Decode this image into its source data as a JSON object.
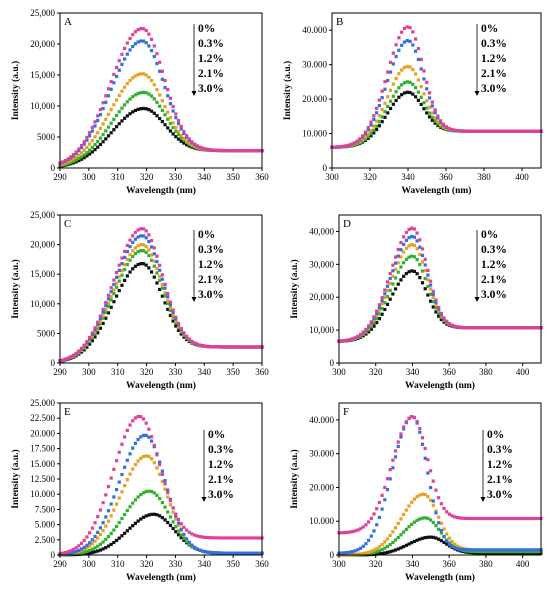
{
  "figure": {
    "legend_entries": [
      "0%",
      "0.3%",
      "1.2%",
      "2.1%",
      "3.0%"
    ]
  },
  "colors": {
    "0%": "#e0409a",
    "0.3%": "#3070e0",
    "1.2%": "#e8a020",
    "2.1%": "#30b030",
    "3.0%": "#111111"
  },
  "chart_data": [
    {
      "panel": "A",
      "type": "scatter",
      "xlabel": "Wavelength (nm)",
      "ylabel": "Intensity (a.u.)",
      "xlim": [
        290,
        360
      ],
      "ylim": [
        0,
        25000
      ],
      "xticks": [
        "290",
        "300",
        "310",
        "320",
        "330",
        "340",
        "350",
        "360"
      ],
      "yticks": [
        "0",
        "5000",
        "10,000",
        "15,000",
        "20,000",
        "25,000"
      ],
      "legend": [
        "0%",
        "0.3%",
        "1.2%",
        "2.1%",
        "3.0%"
      ],
      "series": [
        {
          "name": "0%",
          "color": "#e0409a",
          "model": {
            "peak_x": 318.5,
            "peak_y": 22500,
            "base_left": 0,
            "base_right": 2800,
            "sigma_left": 11,
            "sigma_right": 7.5
          }
        },
        {
          "name": "0.3%",
          "color": "#3070e0",
          "model": {
            "peak_x": 318.5,
            "peak_y": 20500,
            "base_left": 0,
            "base_right": 2800,
            "sigma_left": 11,
            "sigma_right": 7.5
          }
        },
        {
          "name": "1.2%",
          "color": "#e8a020",
          "model": {
            "peak_x": 318.5,
            "peak_y": 15200,
            "base_left": 0,
            "base_right": 2800,
            "sigma_left": 11,
            "sigma_right": 7.5
          }
        },
        {
          "name": "2.1%",
          "color": "#30b030",
          "model": {
            "peak_x": 319,
            "peak_y": 12200,
            "base_left": 0,
            "base_right": 2800,
            "sigma_left": 11,
            "sigma_right": 7.5
          }
        },
        {
          "name": "3.0%",
          "color": "#111111",
          "model": {
            "peak_x": 319,
            "peak_y": 9600,
            "base_left": 0,
            "base_right": 2800,
            "sigma_left": 11,
            "sigma_right": 7.5
          }
        }
      ]
    },
    {
      "panel": "B",
      "type": "scatter",
      "xlabel": "Wavelength (nm)",
      "ylabel": "Intensity (a.u.)",
      "xlim": [
        300,
        410
      ],
      "ylim": [
        0,
        45000
      ],
      "xticks": [
        "300",
        "320",
        "340",
        "360",
        "380",
        "400"
      ],
      "yticks": [
        "0",
        "10.000",
        "20.000",
        "30.000",
        "40.000"
      ],
      "legend": [
        "0%",
        "0.3%",
        "1.2%",
        "2.1%",
        "3.0%"
      ],
      "series": [
        {
          "name": "0%",
          "color": "#e0409a",
          "model": {
            "peak_x": 340,
            "peak_y": 41000,
            "base_left": 6000,
            "base_right": 10700,
            "sigma_left": 11,
            "sigma_right": 8
          }
        },
        {
          "name": "0.3%",
          "color": "#3070e0",
          "model": {
            "peak_x": 340,
            "peak_y": 37000,
            "base_left": 6000,
            "base_right": 10700,
            "sigma_left": 11,
            "sigma_right": 8
          }
        },
        {
          "name": "1.2%",
          "color": "#e8a020",
          "model": {
            "peak_x": 340,
            "peak_y": 29500,
            "base_left": 6000,
            "base_right": 10700,
            "sigma_left": 11,
            "sigma_right": 8
          }
        },
        {
          "name": "2.1%",
          "color": "#30b030",
          "model": {
            "peak_x": 340,
            "peak_y": 25000,
            "base_left": 6000,
            "base_right": 10700,
            "sigma_left": 11,
            "sigma_right": 8
          }
        },
        {
          "name": "3.0%",
          "color": "#111111",
          "model": {
            "peak_x": 340,
            "peak_y": 22000,
            "base_left": 6000,
            "base_right": 10700,
            "sigma_left": 11,
            "sigma_right": 8
          }
        }
      ]
    },
    {
      "panel": "C",
      "type": "scatter",
      "xlabel": "Wavelength (nm)",
      "ylabel": "Intensity (a.u.)",
      "xlim": [
        290,
        360
      ],
      "ylim": [
        0,
        25000
      ],
      "xticks": [
        "290",
        "300",
        "310",
        "320",
        "330",
        "340",
        "350",
        "360"
      ],
      "yticks": [
        "0",
        "5000",
        "10,000",
        "15,000",
        "20,000",
        "25,000"
      ],
      "legend": [
        "0%",
        "0.3%",
        "1.2%",
        "2.1%",
        "3.0%"
      ],
      "series": [
        {
          "name": "0%",
          "color": "#e0409a",
          "model": {
            "peak_x": 318.5,
            "peak_y": 22700,
            "base_left": 0,
            "base_right": 2700,
            "sigma_left": 10,
            "sigma_right": 7
          }
        },
        {
          "name": "0.3%",
          "color": "#3070e0",
          "model": {
            "peak_x": 318.5,
            "peak_y": 21500,
            "base_left": 0,
            "base_right": 2700,
            "sigma_left": 10,
            "sigma_right": 7
          }
        },
        {
          "name": "1.2%",
          "color": "#e8a020",
          "model": {
            "peak_x": 318.5,
            "peak_y": 20000,
            "base_left": 0,
            "base_right": 2700,
            "sigma_left": 10,
            "sigma_right": 7
          }
        },
        {
          "name": "2.1%",
          "color": "#30b030",
          "model": {
            "peak_x": 318.5,
            "peak_y": 19000,
            "base_left": 0,
            "base_right": 2700,
            "sigma_left": 10,
            "sigma_right": 7
          }
        },
        {
          "name": "3.0%",
          "color": "#111111",
          "model": {
            "peak_x": 318.5,
            "peak_y": 16800,
            "base_left": 0,
            "base_right": 2700,
            "sigma_left": 10,
            "sigma_right": 7
          }
        }
      ]
    },
    {
      "panel": "D",
      "type": "scatter",
      "xlabel": "Wavelength (nm)",
      "ylabel": "Intensity (a.u.)",
      "xlim": [
        300,
        410
      ],
      "ylim": [
        0,
        45000
      ],
      "xticks": [
        "300",
        "320",
        "340",
        "360",
        "380",
        "400"
      ],
      "yticks": [
        "0",
        "10,000",
        "20,000",
        "30,000",
        "40,000"
      ],
      "legend": [
        "0%",
        "0.3%",
        "1.2%",
        "2.1%",
        "3.0%"
      ],
      "series": [
        {
          "name": "0%",
          "color": "#e0409a",
          "model": {
            "peak_x": 340,
            "peak_y": 41000,
            "base_left": 6500,
            "base_right": 10700,
            "sigma_left": 12,
            "sigma_right": 8
          }
        },
        {
          "name": "0.3%",
          "color": "#3070e0",
          "model": {
            "peak_x": 340,
            "peak_y": 38500,
            "base_left": 6500,
            "base_right": 10700,
            "sigma_left": 12,
            "sigma_right": 8
          }
        },
        {
          "name": "1.2%",
          "color": "#e8a020",
          "model": {
            "peak_x": 340,
            "peak_y": 36000,
            "base_left": 6500,
            "base_right": 10700,
            "sigma_left": 12,
            "sigma_right": 8
          }
        },
        {
          "name": "2.1%",
          "color": "#30b030",
          "model": {
            "peak_x": 340,
            "peak_y": 32500,
            "base_left": 6500,
            "base_right": 10700,
            "sigma_left": 12,
            "sigma_right": 8
          }
        },
        {
          "name": "3.0%",
          "color": "#111111",
          "model": {
            "peak_x": 340,
            "peak_y": 28000,
            "base_left": 6500,
            "base_right": 10700,
            "sigma_left": 12,
            "sigma_right": 8
          }
        }
      ]
    },
    {
      "panel": "E",
      "type": "scatter",
      "xlabel": "Wavelength (nm)",
      "ylabel": "Intensity (a.u.)",
      "xlim": [
        290,
        360
      ],
      "ylim": [
        0,
        25000
      ],
      "xticks": [
        "290",
        "300",
        "310",
        "320",
        "330",
        "340",
        "350",
        "360"
      ],
      "yticks": [
        "0",
        "2.500",
        "5.000",
        "7.500",
        "10.000",
        "12.500",
        "15.000",
        "17.500",
        "20.000",
        "22.500",
        "25.000"
      ],
      "legend": [
        "0%",
        "0.3%",
        "1.2%",
        "2.1%",
        "3.0%"
      ],
      "series": [
        {
          "name": "0%",
          "color": "#e0409a",
          "model": {
            "peak_x": 317.5,
            "peak_y": 22800,
            "base_left": 0,
            "base_right": 2800,
            "sigma_left": 9,
            "sigma_right": 7
          }
        },
        {
          "name": "0.3%",
          "color": "#3070e0",
          "model": {
            "peak_x": 319.5,
            "peak_y": 19700,
            "base_left": 0,
            "base_right": 300,
            "sigma_left": 9,
            "sigma_right": 7
          }
        },
        {
          "name": "1.2%",
          "color": "#e8a020",
          "model": {
            "peak_x": 320,
            "peak_y": 16300,
            "base_left": 0,
            "base_right": 300,
            "sigma_left": 9,
            "sigma_right": 7
          }
        },
        {
          "name": "2.1%",
          "color": "#30b030",
          "model": {
            "peak_x": 321,
            "peak_y": 10500,
            "base_left": 0,
            "base_right": 300,
            "sigma_left": 9,
            "sigma_right": 7
          }
        },
        {
          "name": "3.0%",
          "color": "#111111",
          "model": {
            "peak_x": 322.5,
            "peak_y": 6700,
            "base_left": 0,
            "base_right": 300,
            "sigma_left": 9,
            "sigma_right": 7
          }
        }
      ]
    },
    {
      "panel": "F",
      "type": "scatter",
      "xlabel": "Wavelength (nm)",
      "ylabel": "Intensity (a.u.)",
      "xlim": [
        300,
        410
      ],
      "ylim": [
        0,
        45000
      ],
      "xticks": [
        "300",
        "320",
        "340",
        "360",
        "380",
        "400"
      ],
      "yticks": [
        "0",
        "10.000",
        "20.000",
        "30.000",
        "40.000"
      ],
      "legend": [
        "0%",
        "0.3%",
        "1.2%",
        "2.1%",
        "3.0%"
      ],
      "series": [
        {
          "name": "0%",
          "color": "#e0409a",
          "model": {
            "peak_x": 340,
            "peak_y": 41000,
            "base_left": 6500,
            "base_right": 10800,
            "sigma_left": 11,
            "sigma_right": 8
          }
        },
        {
          "name": "0.3%",
          "color": "#3070e0",
          "model": {
            "peak_x": 340,
            "peak_y": 41000,
            "base_left": 500,
            "base_right": 1500,
            "sigma_left": 11,
            "sigma_right": 8
          }
        },
        {
          "name": "1.2%",
          "color": "#e8a020",
          "model": {
            "peak_x": 346,
            "peak_y": 18000,
            "base_left": 0,
            "base_right": 1500,
            "sigma_left": 12,
            "sigma_right": 8
          }
        },
        {
          "name": "2.1%",
          "color": "#30b030",
          "model": {
            "peak_x": 347,
            "peak_y": 11000,
            "base_left": 0,
            "base_right": 1000,
            "sigma_left": 12,
            "sigma_right": 8
          }
        },
        {
          "name": "3.0%",
          "color": "#111111",
          "model": {
            "peak_x": 350,
            "peak_y": 5300,
            "base_left": 0,
            "base_right": 600,
            "sigma_left": 12,
            "sigma_right": 8
          }
        }
      ]
    }
  ]
}
